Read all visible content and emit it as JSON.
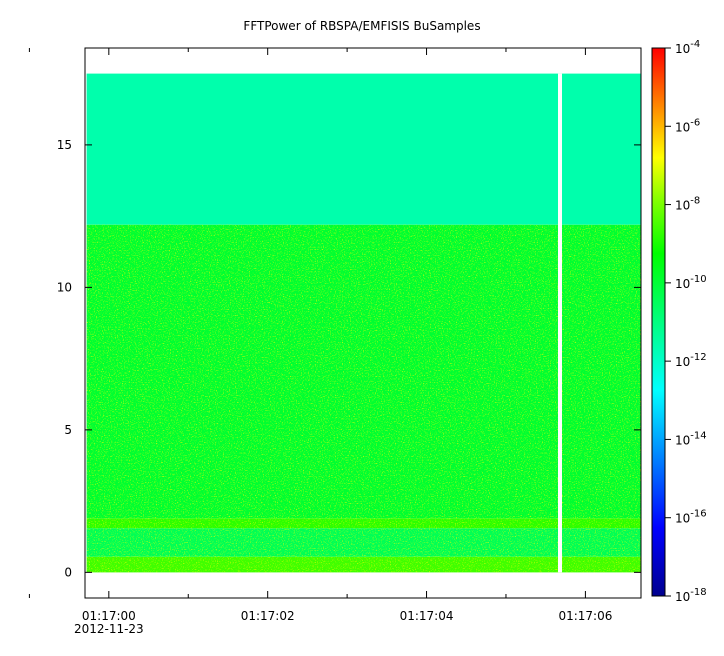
{
  "chart_data": {
    "type": "heatmap",
    "title": "FFTPower of RBSPA/EMFISIS  BuSamples",
    "xlabel": "",
    "ylabel": "",
    "x_axis": {
      "ticks": [
        {
          "value": "01:17:00",
          "label": "01:17:00",
          "sublabel": "2012-11-23"
        },
        {
          "value": "01:17:02",
          "label": "01:17:02"
        },
        {
          "value": "01:17:04",
          "label": "01:17:04"
        },
        {
          "value": "01:17:06",
          "label": "01:17:06"
        }
      ],
      "minor_ticks": [
        "01:16:59",
        "01:17:01",
        "01:17:03",
        "01:17:05"
      ],
      "range": [
        "01:16:59.70",
        "01:17:06.70"
      ]
    },
    "y_axis": {
      "ticks": [
        0,
        5,
        10,
        15
      ],
      "range": [
        -0.9,
        18.4
      ]
    },
    "colorbar": {
      "scale": "log",
      "range": [
        1e-18,
        0.0001
      ],
      "tick_base": "10",
      "tick_exponents": [
        "-4",
        "-6",
        "-8",
        "-10",
        "-12",
        "-14",
        "-16",
        "-18"
      ]
    },
    "data_extent": {
      "x_start": "01:16:59.72",
      "x_end": "01:17:06.70",
      "y_min": 0,
      "y_max": 17.5
    },
    "gap": {
      "x": "01:17:05.68"
    },
    "bands": [
      {
        "y_from": 0.0,
        "y_to": 0.55,
        "level_log10": -8.6
      },
      {
        "y_from": 0.55,
        "y_to": 1.55,
        "level_log10": -10.4
      },
      {
        "y_from": 1.55,
        "y_to": 1.9,
        "level_log10": -8.8
      },
      {
        "y_from": 1.9,
        "y_to": 12.2,
        "level_log10": -9.9
      },
      {
        "y_from": 12.2,
        "y_to": 17.5,
        "level_log10": -11.6
      }
    ],
    "grid": false,
    "legend": "colorbar-right"
  }
}
